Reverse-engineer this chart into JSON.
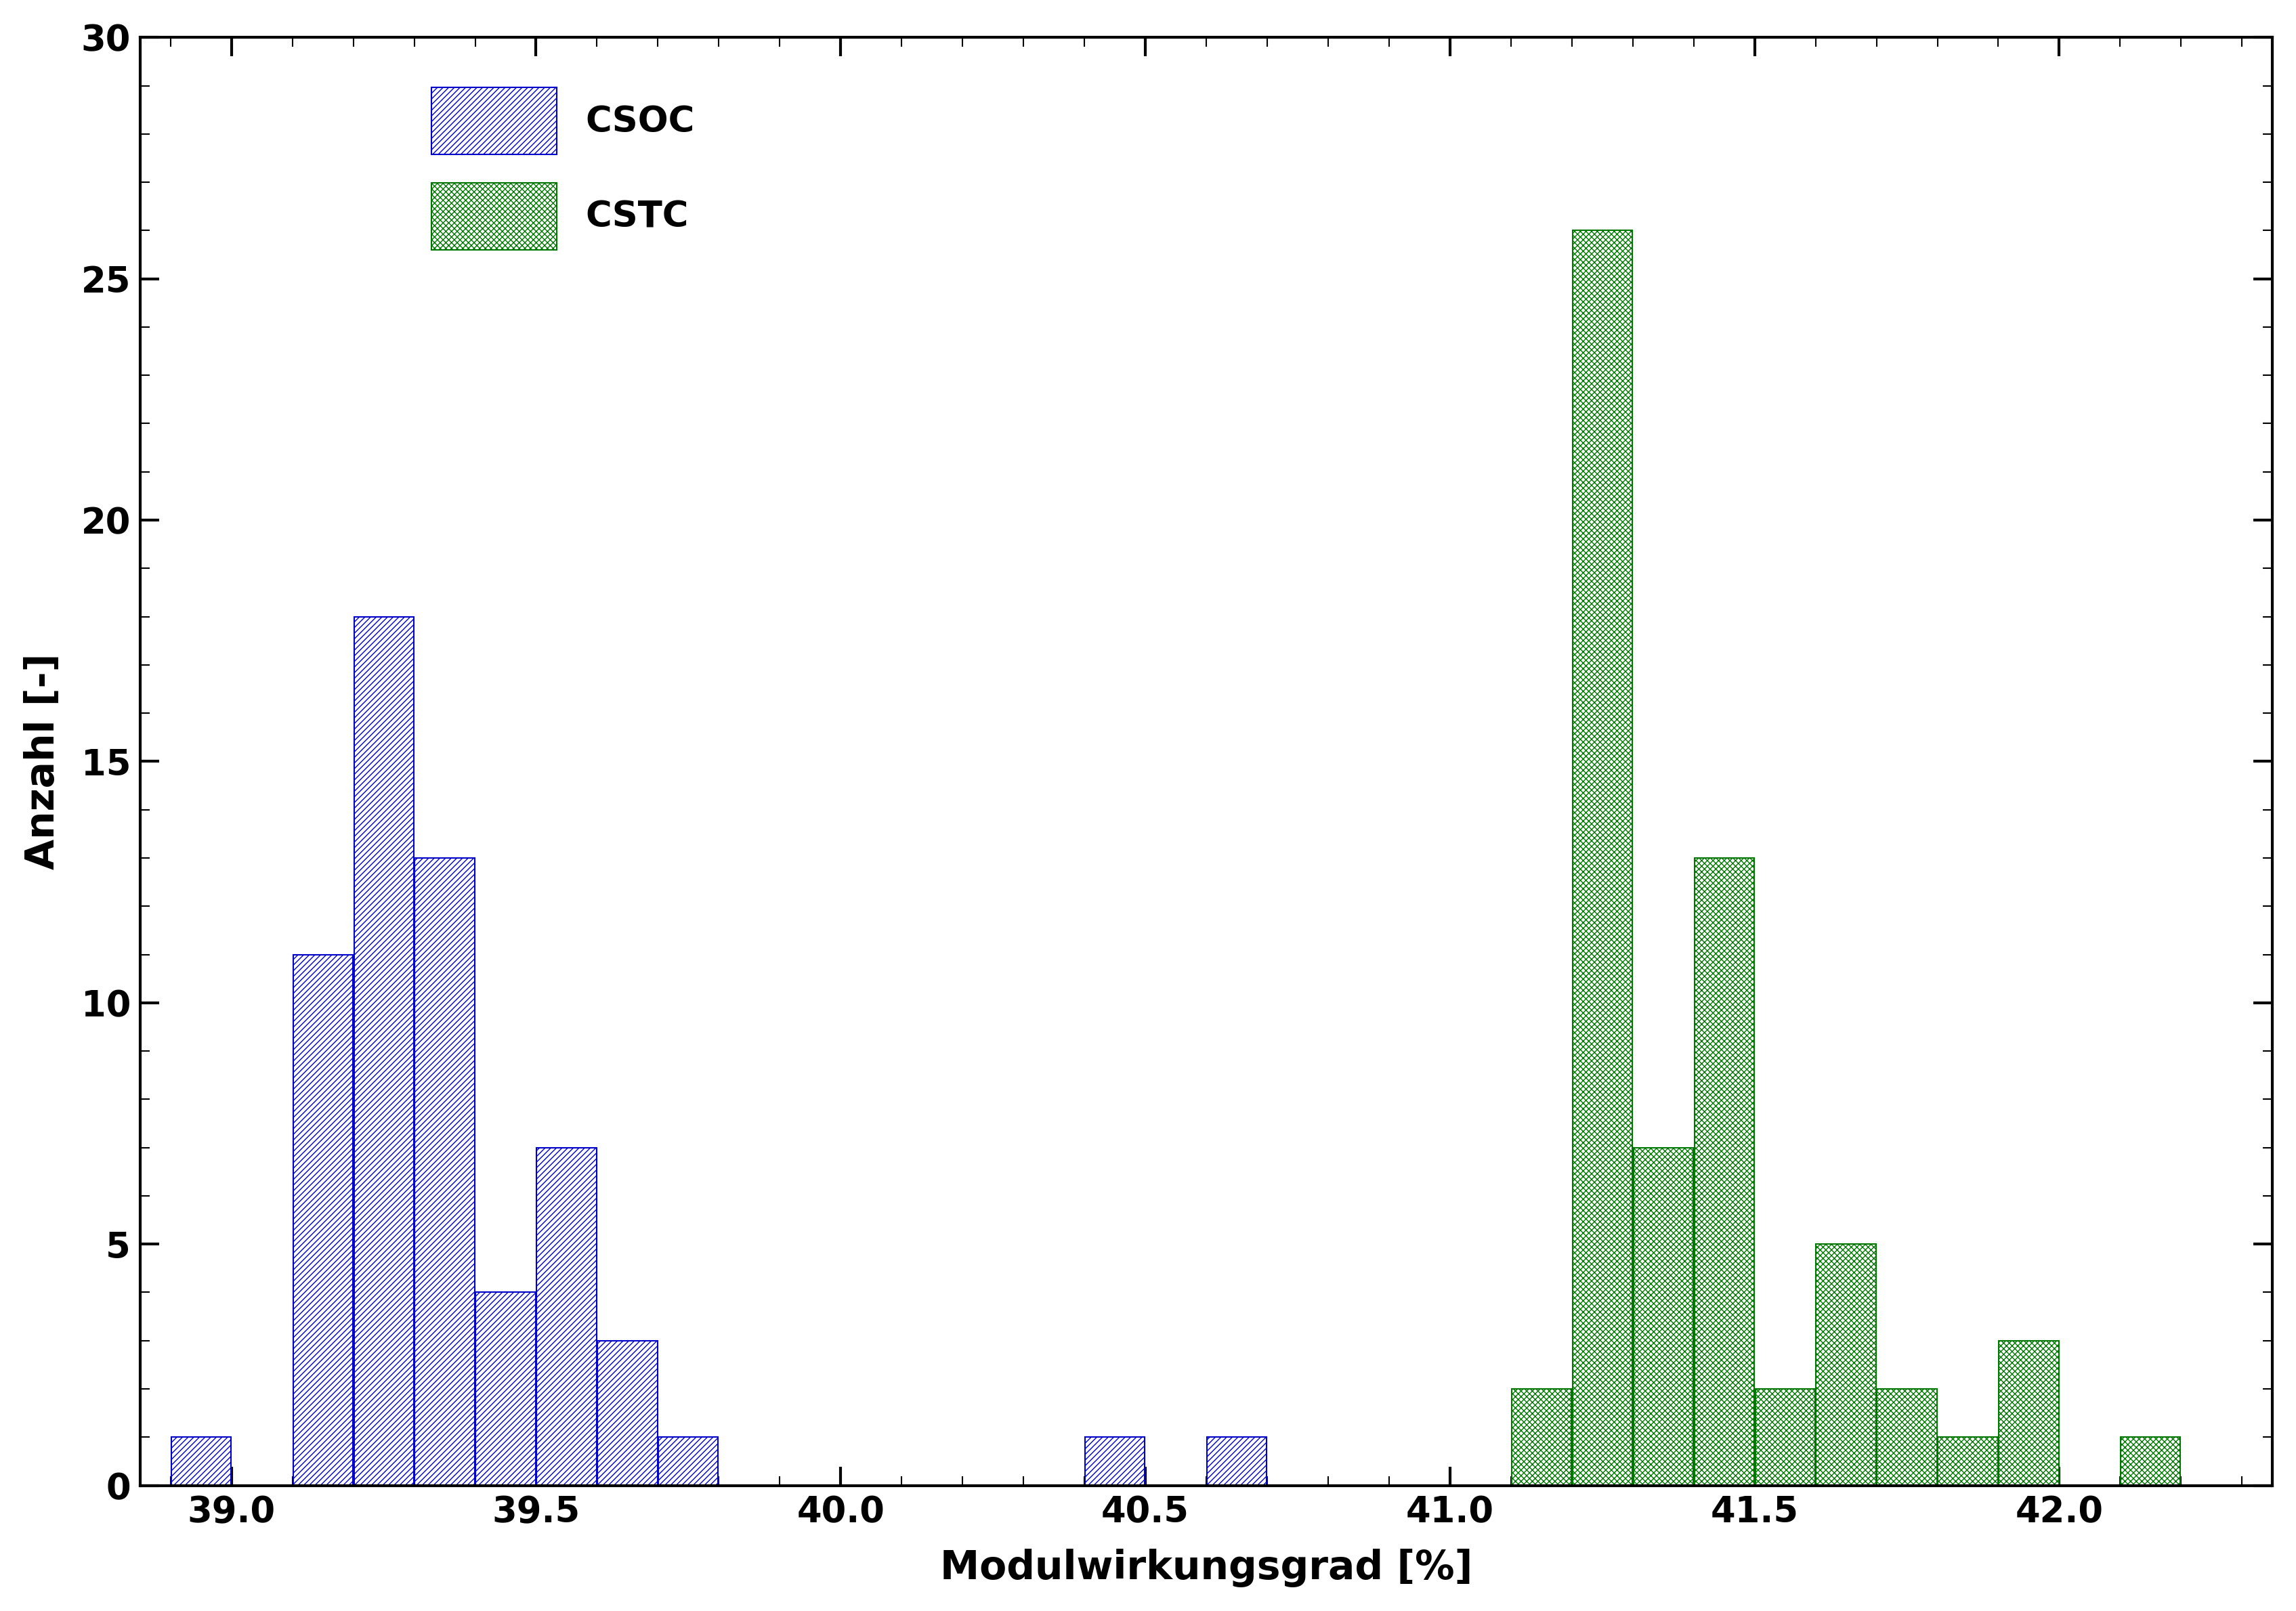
{
  "xlabel": "Modulwirkungsgrad [%]",
  "ylabel": "Anzahl [-]",
  "xlim": [
    38.85,
    42.35
  ],
  "ylim": [
    0,
    30
  ],
  "yticks": [
    0,
    5,
    10,
    15,
    20,
    25,
    30
  ],
  "xticks": [
    39.0,
    39.5,
    40.0,
    40.5,
    41.0,
    41.5,
    42.0
  ],
  "csoc_bars": [
    [
      38.9,
      1
    ],
    [
      39.1,
      11
    ],
    [
      39.2,
      18
    ],
    [
      39.3,
      13
    ],
    [
      39.4,
      4
    ],
    [
      39.5,
      7
    ],
    [
      39.6,
      3
    ],
    [
      39.7,
      1
    ],
    [
      40.4,
      1
    ],
    [
      40.6,
      1
    ]
  ],
  "cstc_bars": [
    [
      41.1,
      2
    ],
    [
      41.2,
      26
    ],
    [
      41.3,
      7
    ],
    [
      41.4,
      13
    ],
    [
      41.5,
      2
    ],
    [
      41.6,
      5
    ],
    [
      41.7,
      2
    ],
    [
      41.8,
      1
    ],
    [
      41.9,
      3
    ],
    [
      42.1,
      1
    ]
  ],
  "bar_width": 0.1,
  "csoc_color": "#0000cc",
  "cstc_color": "#007700",
  "background_color": "#ffffff",
  "label_fontsize": 42,
  "tick_fontsize": 38,
  "legend_fontsize": 38
}
